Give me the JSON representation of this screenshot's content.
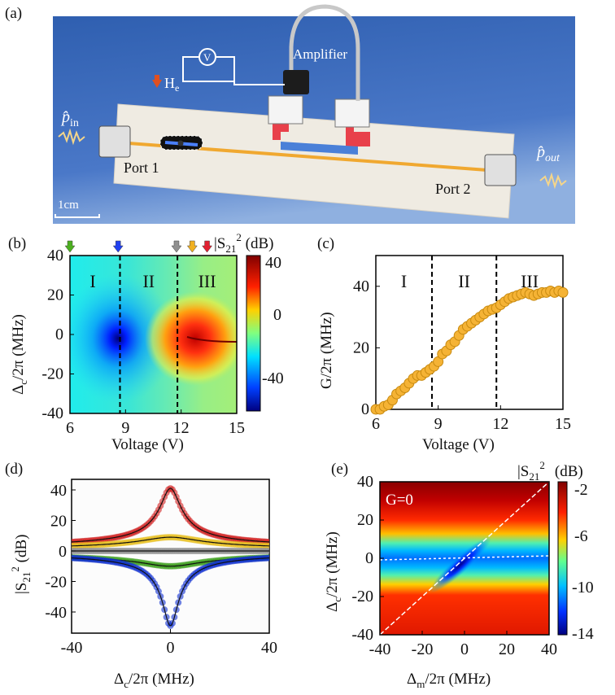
{
  "panel_labels": {
    "a": "(a)",
    "b": "(b)",
    "c": "(c)",
    "d": "(d)",
    "e": "(e)"
  },
  "schematic": {
    "amplifier": "Amplifier",
    "voltmeter": "V",
    "field_main": "H",
    "field_sub": "e",
    "p_in_main": "p̂",
    "p_in_sub": "in",
    "p_out_main": "p̂",
    "p_out_sub": "out",
    "port1": "Port 1",
    "port2": "Port 2",
    "scale": "1cm",
    "colors": {
      "background": "#3f6fc0",
      "board": "#efebe2",
      "line": "#f0a830",
      "red_tab": "#e8404a",
      "blue_tab": "#4a80d8"
    }
  },
  "chart_data": [
    {
      "id": "b",
      "type": "heatmap",
      "xlabel": "Voltage (V)",
      "ylabel": {
        "main": "Δ",
        "sub": "c",
        "rest": "/2π (MHz)"
      },
      "xlim": [
        6,
        15
      ],
      "ylim": [
        -40,
        40
      ],
      "xticks": [
        "6",
        "9",
        "12",
        "15"
      ],
      "yticks": [
        "40",
        "20",
        "0",
        "-20",
        "-40"
      ],
      "regions": [
        "I",
        "II",
        "III"
      ],
      "region_boundaries_V": [
        8.7,
        11.8
      ],
      "markers": [
        {
          "voltage": 6.0,
          "color": "#4caf20"
        },
        {
          "voltage": 8.6,
          "color": "#2040f0"
        },
        {
          "voltage": 11.75,
          "color": "#909090"
        },
        {
          "voltage": 12.6,
          "color": "#f0b020"
        },
        {
          "voltage": 13.4,
          "color": "#e02030"
        }
      ],
      "colorbar": {
        "title_main": "|S",
        "title_sub": "21",
        "title_sup": "2",
        "title_unit": " (dB)",
        "ticks": [
          "40",
          "0",
          "-40"
        ],
        "range": [
          -60,
          45
        ]
      },
      "features": {
        "dip_V": 8.7,
        "dip_db": -55,
        "peak_V": 13.2,
        "peak_db": 40
      }
    },
    {
      "id": "c",
      "type": "scatter",
      "xlabel": "Voltage (V)",
      "ylabel": "G/2π (MHz)",
      "xlim": [
        6,
        15
      ],
      "ylim": [
        0,
        50
      ],
      "xticks": [
        "6",
        "9",
        "12",
        "15"
      ],
      "yticks": [
        "40",
        "20",
        "0"
      ],
      "regions": [
        "I",
        "II",
        "III"
      ],
      "region_boundaries_V": [
        8.7,
        11.8
      ],
      "color": "#f5b335",
      "x": [
        6.0,
        6.2,
        6.4,
        6.6,
        6.8,
        7.0,
        7.2,
        7.4,
        7.6,
        7.8,
        8.0,
        8.2,
        8.4,
        8.6,
        8.8,
        9.0,
        9.2,
        9.4,
        9.6,
        9.8,
        10.0,
        10.2,
        10.4,
        10.6,
        10.8,
        11.0,
        11.2,
        11.4,
        11.6,
        11.8,
        12.0,
        12.2,
        12.4,
        12.6,
        12.8,
        13.0,
        13.2,
        13.4,
        13.6,
        13.8,
        14.0,
        14.2,
        14.4,
        14.6,
        14.8,
        15.0
      ],
      "y": [
        0,
        0,
        1,
        1.5,
        3,
        5,
        6,
        7,
        8.5,
        10,
        11,
        11,
        12,
        13,
        14,
        15.5,
        18,
        19,
        21,
        22,
        24,
        26,
        27,
        28,
        29,
        30,
        31,
        32,
        32.5,
        33,
        34,
        35,
        36,
        36.5,
        37,
        37.5,
        38,
        37.5,
        37,
        37.5,
        38,
        38,
        38.5,
        38,
        38.5,
        38
      ]
    },
    {
      "id": "d",
      "type": "line",
      "xlabel": {
        "main": "Δ",
        "sub": "c",
        "rest": "/2π (MHz)"
      },
      "ylabel": {
        "main": "|S",
        "sub": "21",
        "sup": "2",
        "rest": " (dB)"
      },
      "xlim": [
        -40,
        40
      ],
      "ylim": [
        -54,
        47
      ],
      "xticks": [
        "-40",
        "0",
        "40"
      ],
      "yticks": [
        "40",
        "20",
        "0",
        "-20",
        "-40"
      ],
      "series": [
        {
          "name": "red",
          "color": "#d02020",
          "peak_db": 41,
          "edge_db": 2,
          "width_mhz": 4
        },
        {
          "name": "yellow",
          "color": "#e8c020",
          "peak_db": 9,
          "edge_db": 1,
          "width_mhz": 12
        },
        {
          "name": "gray",
          "color": "#909090",
          "peak_db": 0,
          "edge_db": 0,
          "width_mhz": 10
        },
        {
          "name": "green",
          "color": "#40a020",
          "peak_db": -10,
          "edge_db": -2,
          "width_mhz": 12
        },
        {
          "name": "blue",
          "color": "#1030d0",
          "peak_db": -49,
          "edge_db": -1,
          "width_mhz": 3
        }
      ]
    },
    {
      "id": "e",
      "type": "heatmap",
      "annotation": "G=0",
      "xlabel": {
        "main": "Δ",
        "sub": "m",
        "rest": "/2π (MHz)"
      },
      "ylabel": {
        "main": "Δ",
        "sub": "c",
        "rest": "/2π  (MHz)"
      },
      "xlim": [
        -40,
        40
      ],
      "ylim": [
        -40,
        40
      ],
      "xticks": [
        "-40",
        "-20",
        "0",
        "20",
        "40"
      ],
      "yticks": [
        "40",
        "20",
        "0",
        "-20",
        "-40"
      ],
      "colorbar": {
        "title_main": "|S",
        "title_sub": "21",
        "title_sup": "2",
        "title_unit": "(dB)",
        "ticks": [
          "-2",
          "-6",
          "-10",
          "-14"
        ],
        "range": [
          -14,
          -1
        ]
      }
    }
  ]
}
